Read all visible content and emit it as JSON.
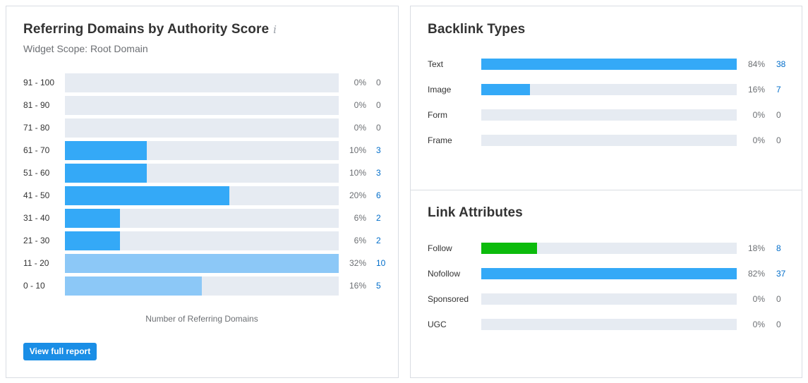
{
  "chart_data": [
    {
      "type": "bar",
      "orientation": "horizontal",
      "title": "Referring Domains by Authority Score",
      "subtitle": "Widget Scope: Root Domain",
      "xlabel": "Number of Referring Domains",
      "categories": [
        "91 - 100",
        "81 - 90",
        "71 - 80",
        "61 - 70",
        "51 - 60",
        "41 - 50",
        "31 - 40",
        "21 - 30",
        "11 - 20",
        "0 - 10"
      ],
      "values": [
        0,
        0,
        0,
        3,
        3,
        6,
        2,
        2,
        10,
        5
      ],
      "percents": [
        "0%",
        "0%",
        "0%",
        "10%",
        "10%",
        "20%",
        "6%",
        "6%",
        "32%",
        "16%"
      ],
      "counts": [
        "0",
        "0",
        "0",
        "3",
        "3",
        "6",
        "2",
        "2",
        "10",
        "5"
      ],
      "xlim": [
        0,
        10
      ],
      "colors": [
        "#34a9f7",
        "#34a9f7",
        "#34a9f7",
        "#34a9f7",
        "#34a9f7",
        "#34a9f7",
        "#34a9f7",
        "#34a9f7",
        "#8cc8f7",
        "#8cc8f7"
      ]
    },
    {
      "type": "bar",
      "orientation": "horizontal",
      "title": "Backlink Types",
      "categories": [
        "Text",
        "Image",
        "Form",
        "Frame"
      ],
      "values": [
        84,
        16,
        0,
        0
      ],
      "percents": [
        "84%",
        "16%",
        "0%",
        "0%"
      ],
      "counts": [
        "38",
        "7",
        "0",
        "0"
      ],
      "xlim": [
        0,
        84
      ],
      "colors": [
        "#34a9f7",
        "#34a9f7",
        "#34a9f7",
        "#34a9f7"
      ]
    },
    {
      "type": "bar",
      "orientation": "horizontal",
      "title": "Link Attributes",
      "categories": [
        "Follow",
        "Nofollow",
        "Sponsored",
        "UGC"
      ],
      "values": [
        18,
        82,
        0,
        0
      ],
      "percents": [
        "18%",
        "82%",
        "0%",
        "0%"
      ],
      "counts": [
        "8",
        "37",
        "0",
        "0"
      ],
      "xlim": [
        0,
        82
      ],
      "colors": [
        "#0cbb0c",
        "#34a9f7",
        "#34a9f7",
        "#34a9f7"
      ]
    }
  ],
  "info_icon": "info-icon",
  "button_label": "View full report"
}
